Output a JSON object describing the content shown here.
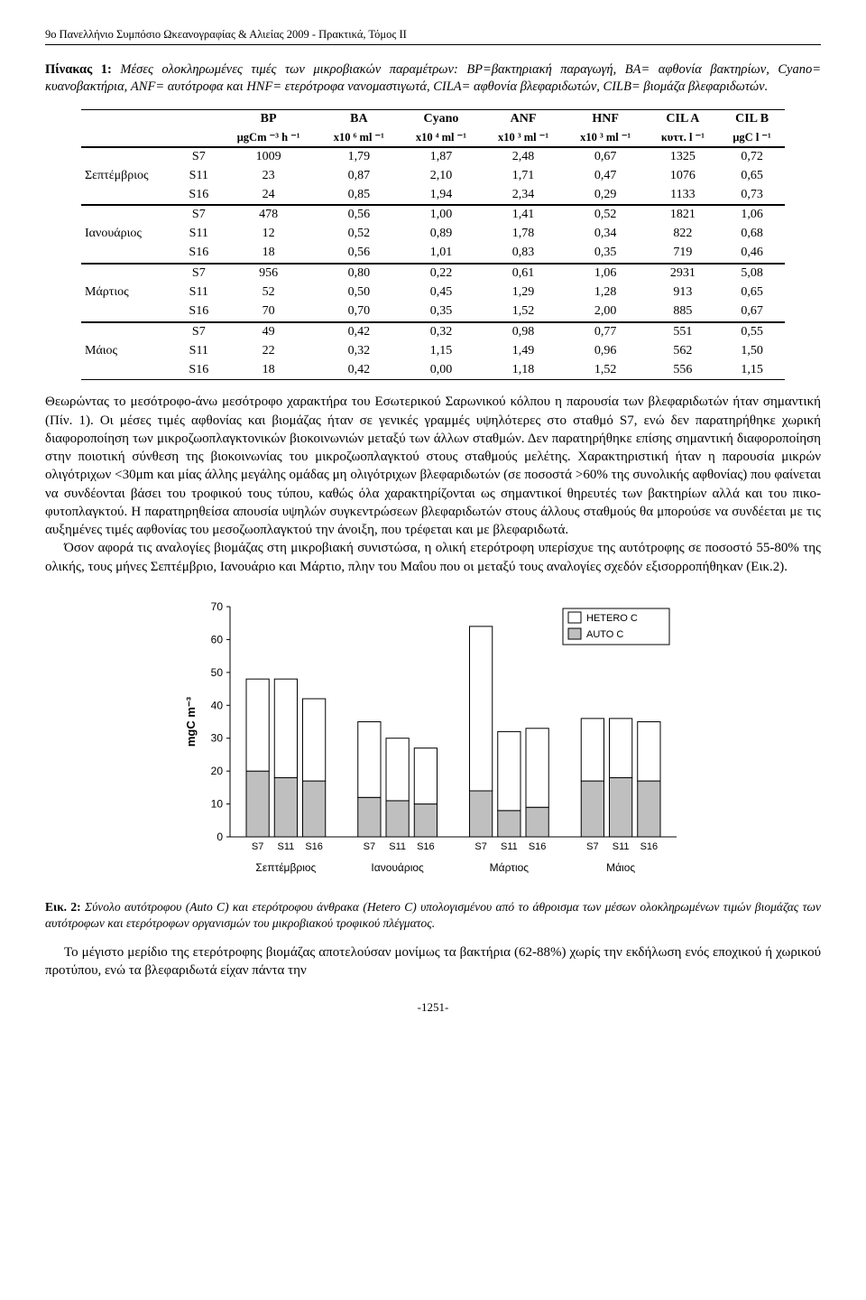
{
  "header": "9ο Πανελλήνιο Συμπόσιο Ωκεανογραφίας & Αλιείας 2009 - Πρακτικά, Τόμος ΙΙ",
  "table_caption_bold": "Πίνακας 1:",
  "table_caption": " Μέσες ολοκληρωμένες τιμές των μικροβιακών παραμέτρων: BP=βακτηριακή παραγωγή, BA= αφθονία βακτηρίων, Cyano= κυανοβακτήρια, ANF= αυτότροφα και HNF= ετερότροφα νανομαστιγωτά, CILA= αφθονία βλεφαριδωτών, CILB= βιομάζα βλεφαριδωτών.",
  "table": {
    "head1": [
      "",
      "",
      "BP",
      "BA",
      "Cyano",
      "ANF",
      "HNF",
      "CIL A",
      "CIL B"
    ],
    "head2": [
      "",
      "",
      "μgCm ⁻³ h ⁻¹",
      "x10 ⁶ ml ⁻¹",
      "x10 ⁴ ml ⁻¹",
      "x10 ³ ml ⁻¹",
      "x10 ³ ml ⁻¹",
      "κυττ. l ⁻¹",
      "μgC l ⁻¹"
    ],
    "months": [
      "Σεπτέμβριος",
      "Ιανουάριος",
      "Μάρτιος",
      "Μάιος"
    ],
    "rows": [
      [
        "S7",
        "1009",
        "1,79",
        "1,87",
        "2,48",
        "0,67",
        "1325",
        "0,72"
      ],
      [
        "S11",
        "23",
        "0,87",
        "2,10",
        "1,71",
        "0,47",
        "1076",
        "0,65"
      ],
      [
        "S16",
        "24",
        "0,85",
        "1,94",
        "2,34",
        "0,29",
        "1133",
        "0,73"
      ],
      [
        "S7",
        "478",
        "0,56",
        "1,00",
        "1,41",
        "0,52",
        "1821",
        "1,06"
      ],
      [
        "S11",
        "12",
        "0,52",
        "0,89",
        "1,78",
        "0,34",
        "822",
        "0,68"
      ],
      [
        "S16",
        "18",
        "0,56",
        "1,01",
        "0,83",
        "0,35",
        "719",
        "0,46"
      ],
      [
        "S7",
        "956",
        "0,80",
        "0,22",
        "0,61",
        "1,06",
        "2931",
        "5,08"
      ],
      [
        "S11",
        "52",
        "0,50",
        "0,45",
        "1,29",
        "1,28",
        "913",
        "0,65"
      ],
      [
        "S16",
        "70",
        "0,70",
        "0,35",
        "1,52",
        "2,00",
        "885",
        "0,67"
      ],
      [
        "S7",
        "49",
        "0,42",
        "0,32",
        "0,98",
        "0,77",
        "551",
        "0,55"
      ],
      [
        "S11",
        "22",
        "0,32",
        "1,15",
        "1,49",
        "0,96",
        "562",
        "1,50"
      ],
      [
        "S16",
        "18",
        "0,42",
        "0,00",
        "1,18",
        "1,52",
        "556",
        "1,15"
      ]
    ]
  },
  "para1": "Θεωρώντας το μεσότροφο-άνω μεσότροφο χαρακτήρα του Εσωτερικού Σαρωνικού κόλπου η παρουσία των βλεφαριδωτών ήταν σημαντική (Πίν. 1). Οι μέσες τιμές αφθονίας και βιομάζας ήταν σε γενικές γραμμές υψηλότερες στο σταθμό S7, ενώ δεν παρατηρήθηκε χωρική διαφοροποίηση των μικροζωοπλαγκτονικών βιοκοινωνιών μεταξύ των άλλων σταθμών. Δεν παρατηρήθηκε επίσης σημαντική διαφοροποίηση στην ποιοτική σύνθεση της βιοκοινωνίας του μικροζωοπλαγκτού στους σταθμούς μελέτης. Χαρακτηριστική ήταν η παρουσία μικρών ολιγότριχων <30μm και μίας άλλης μεγάλης ομάδας μη ολιγότριχων βλεφαριδωτών (σε ποσοστά >60% της συνολικής αφθονίας) που φαίνεται να συνδέονται βάσει του τροφικού τους τύπου, καθώς όλα χαρακτηρίζονται ως σημαντικοί θηρευτές των βακτηρίων αλλά και του πικο-φυτοπλαγκτού. Η παρατηρηθείσα απουσία υψηλών συγκεντρώσεων βλεφαριδωτών στους άλλους σταθμούς θα μπορούσε να συνδέεται με τις αυξημένες τιμές αφθονίας του μεσοζωοπλαγκτού την άνοιξη, που τρέφεται και με βλεφαριδωτά.",
  "para2": "Όσον αφορά τις αναλογίες βιομάζας στη μικροβιακή συνιστώσα, η ολική ετερότροφη υπερίσχυε της αυτότροφης σε ποσοστό 55-80% της ολικής, τους μήνες Σεπτέμβριο, Ιανουάριο και Μάρτιο, πλην του Μαΐου που οι μεταξύ τους αναλογίες σχεδόν εξισορροπήθηκαν (Εικ.2).",
  "chart": {
    "type": "stacked-bar",
    "ylabel": "mgC m⁻³",
    "ylim": [
      0,
      70
    ],
    "ytick_step": 10,
    "legend": [
      {
        "label": "HETERO C",
        "fill": "#ffffff",
        "stroke": "#000000"
      },
      {
        "label": "AUTO C",
        "fill": "#bfbfbf",
        "stroke": "#000000"
      }
    ],
    "group_labels": [
      "Σεπτέμβριος",
      "Ιανουάριος",
      "Μάρτιος",
      "Μάιος"
    ],
    "bar_labels": [
      "S7",
      "S11",
      "S16"
    ],
    "groups": [
      {
        "auto": [
          20,
          18,
          17
        ],
        "hetero": [
          28,
          30,
          25
        ]
      },
      {
        "auto": [
          12,
          11,
          10
        ],
        "hetero": [
          23,
          19,
          17
        ]
      },
      {
        "auto": [
          14,
          8,
          9
        ],
        "hetero": [
          50,
          24,
          24
        ]
      },
      {
        "auto": [
          17,
          18,
          17
        ],
        "hetero": [
          19,
          18,
          18
        ]
      }
    ],
    "axis_color": "#000000",
    "grid_color": "#cccccc",
    "bar_stroke": "#000000",
    "label_fontsize": 12,
    "axis_fontsize": 13
  },
  "fig_caption_bold": "Εικ. 2:",
  "fig_caption": " Σύνολο αυτότροφου (Auto C) και ετερότροφου άνθρακα (Hetero C) υπολογισμένου από το άθροισμα των μέσων ολοκληρωμένων τιμών βιομάζας των αυτότροφων και ετερότροφων οργανισμών του μικροβιακού τροφικού πλέγματος.",
  "para3": "Το μέγιστο μερίδιο της ετερότροφης βιομάζας αποτελούσαν μονίμως τα βακτήρια (62-88%) χωρίς την εκδήλωση ενός εποχικού ή χωρικού προτύπου, ενώ τα βλεφαριδωτά είχαν πάντα την",
  "pagenum": "-1251-"
}
